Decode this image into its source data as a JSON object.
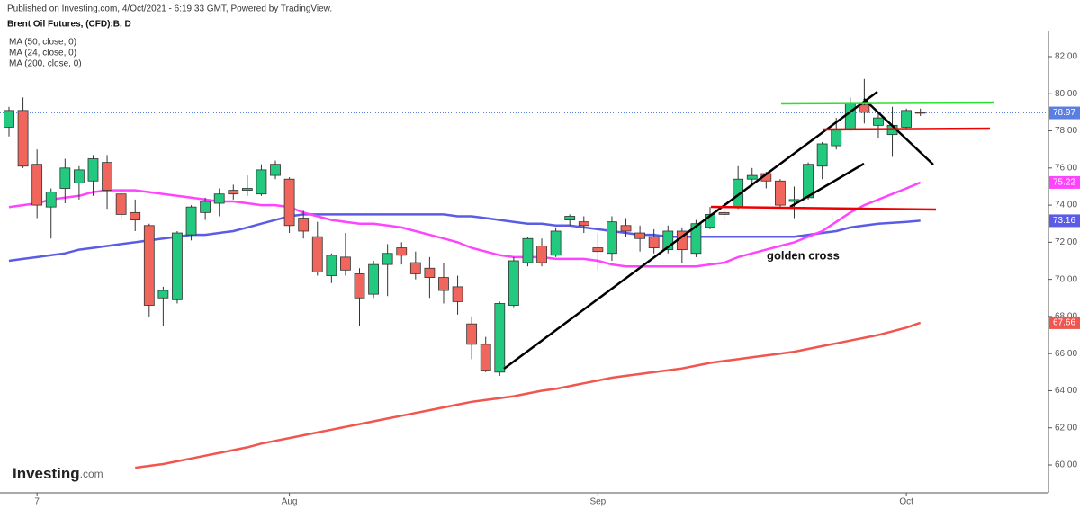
{
  "chart_data": {
    "type": "candlestick",
    "published": "Published on Investing.com, 4/Oct/2021 - 6:19:33 GMT, Powered by TradingView.",
    "title": "Brent Oil Futures, (CFD):B, D",
    "logo": {
      "name": "Investing",
      "suffix": ".com"
    },
    "annotation": "golden cross",
    "categories": [
      null,
      null,
      "7",
      null,
      null,
      null,
      null,
      null,
      null,
      null,
      null,
      null,
      null,
      null,
      null,
      null,
      null,
      null,
      null,
      null,
      "Aug",
      null,
      null,
      null,
      null,
      null,
      null,
      null,
      null,
      null,
      null,
      null,
      null,
      null,
      null,
      null,
      null,
      null,
      null,
      null,
      null,
      null,
      "Sep",
      null,
      null,
      null,
      null,
      null,
      null,
      null,
      null,
      null,
      null,
      null,
      null,
      null,
      null,
      null,
      null,
      null,
      null,
      null,
      null,
      null,
      "Oct",
      null
    ],
    "open": [
      78.2,
      79.1,
      76.2,
      73.9,
      74.9,
      75.2,
      75.3,
      76.3,
      74.6,
      73.6,
      72.9,
      69.0,
      68.9,
      72.4,
      73.6,
      74.1,
      74.8,
      74.8,
      74.6,
      75.6,
      75.4,
      73.3,
      72.3,
      70.2,
      71.2,
      70.3,
      69.2,
      70.8,
      71.7,
      70.9,
      70.6,
      70.1,
      69.6,
      67.6,
      66.5,
      65.0,
      68.6,
      70.9,
      71.8,
      71.3,
      73.2,
      73.1,
      71.7,
      71.4,
      72.9,
      72.5,
      72.3,
      71.6,
      72.6,
      71.4,
      72.8,
      73.6,
      73.9,
      75.4,
      75.7,
      75.3,
      74.2,
      74.4,
      76.1,
      77.2,
      78.1,
      79.4,
      78.3,
      77.8,
      78.2,
      79.0
    ],
    "high": [
      79.3,
      79.8,
      77.0,
      74.9,
      76.5,
      76.1,
      76.7,
      76.7,
      74.8,
      74.3,
      73.0,
      69.6,
      72.6,
      74.0,
      74.4,
      74.9,
      75.1,
      75.6,
      76.2,
      76.4,
      75.5,
      73.7,
      73.1,
      71.4,
      72.5,
      70.6,
      71.0,
      71.9,
      72.0,
      71.5,
      71.2,
      70.9,
      70.2,
      68.0,
      66.9,
      68.8,
      71.2,
      72.3,
      72.2,
      72.8,
      73.5,
      73.4,
      72.5,
      73.4,
      73.3,
      72.9,
      72.7,
      72.9,
      72.8,
      73.2,
      73.9,
      74.1,
      76.1,
      76.0,
      75.8,
      75.4,
      75.0,
      76.3,
      77.4,
      78.7,
      79.8,
      80.8,
      79.0,
      79.3,
      79.2,
      79.2
    ],
    "low": [
      77.7,
      76.0,
      73.3,
      72.2,
      74.1,
      74.3,
      74.5,
      73.8,
      73.3,
      72.6,
      68.0,
      67.5,
      68.7,
      72.1,
      73.2,
      73.4,
      74.3,
      74.5,
      74.5,
      75.4,
      72.5,
      72.2,
      70.2,
      69.8,
      70.2,
      67.5,
      69.0,
      69.1,
      70.8,
      70.0,
      69.0,
      68.7,
      68.1,
      65.7,
      65.0,
      64.8,
      68.5,
      70.7,
      70.7,
      71.2,
      72.9,
      72.5,
      70.5,
      71.0,
      72.3,
      71.5,
      71.4,
      71.4,
      70.9,
      71.2,
      72.7,
      73.2,
      73.8,
      75.0,
      74.9,
      73.9,
      73.3,
      74.3,
      75.4,
      77.0,
      78.0,
      78.4,
      77.6,
      76.6,
      78.1,
      78.8
    ],
    "close": [
      79.1,
      76.1,
      74.0,
      74.7,
      76.0,
      75.9,
      76.5,
      74.8,
      73.5,
      73.2,
      68.6,
      69.4,
      72.5,
      73.9,
      74.2,
      74.6,
      74.6,
      74.9,
      75.9,
      76.2,
      72.9,
      72.6,
      70.4,
      71.3,
      70.5,
      69.0,
      70.8,
      71.4,
      71.3,
      70.3,
      70.1,
      69.4,
      68.8,
      66.5,
      65.1,
      68.7,
      71.0,
      72.2,
      70.9,
      72.6,
      73.4,
      72.9,
      71.5,
      73.1,
      72.6,
      72.2,
      71.7,
      72.6,
      71.6,
      73.0,
      73.5,
      73.5,
      75.4,
      75.6,
      75.3,
      74.0,
      74.3,
      76.2,
      77.3,
      78.1,
      79.5,
      79.0,
      78.7,
      78.3,
      79.1,
      78.97
    ],
    "up_color": "#22c97f",
    "down_color": "#f0665c",
    "series": [
      {
        "name": "MA (50, close, 0)",
        "color": "#5b5ce6",
        "values": [
          71.0,
          71.1,
          71.2,
          71.3,
          71.4,
          71.6,
          71.7,
          71.8,
          71.9,
          72.0,
          72.1,
          72.2,
          72.3,
          72.4,
          72.4,
          72.5,
          72.6,
          72.8,
          73.0,
          73.2,
          73.4,
          73.5,
          73.5,
          73.5,
          73.5,
          73.5,
          73.5,
          73.5,
          73.5,
          73.5,
          73.5,
          73.5,
          73.4,
          73.4,
          73.3,
          73.2,
          73.1,
          73.0,
          73.0,
          72.9,
          72.9,
          72.8,
          72.7,
          72.6,
          72.5,
          72.4,
          72.4,
          72.3,
          72.3,
          72.3,
          72.3,
          72.3,
          72.3,
          72.3,
          72.3,
          72.3,
          72.3,
          72.4,
          72.5,
          72.6,
          72.8,
          72.9,
          73.0,
          73.05,
          73.1,
          73.16
        ]
      },
      {
        "name": "MA (24, close, 0)",
        "color": "#ff44ff",
        "values": [
          73.9,
          74.0,
          74.1,
          74.3,
          74.4,
          74.5,
          74.7,
          74.8,
          74.8,
          74.8,
          74.7,
          74.6,
          74.5,
          74.4,
          74.3,
          74.2,
          74.2,
          74.1,
          74.0,
          74.0,
          73.9,
          73.6,
          73.4,
          73.2,
          73.1,
          73.0,
          73.0,
          72.9,
          72.8,
          72.6,
          72.4,
          72.2,
          72.0,
          71.7,
          71.5,
          71.3,
          71.2,
          71.2,
          71.2,
          71.1,
          71.1,
          71.1,
          71.0,
          70.8,
          70.7,
          70.7,
          70.7,
          70.7,
          70.7,
          70.7,
          70.8,
          70.9,
          71.2,
          71.4,
          71.6,
          71.8,
          72.0,
          72.3,
          72.6,
          73.1,
          73.6,
          74.0,
          74.3,
          74.6,
          74.9,
          75.22
        ]
      },
      {
        "name": "MA (200, close, 0)",
        "color": "#f0564f",
        "values": [
          null,
          null,
          null,
          null,
          null,
          null,
          null,
          null,
          null,
          59.85,
          59.95,
          60.05,
          60.2,
          60.35,
          60.5,
          60.65,
          60.8,
          60.95,
          61.15,
          61.3,
          61.45,
          61.6,
          61.75,
          61.9,
          62.05,
          62.2,
          62.35,
          62.5,
          62.65,
          62.8,
          62.95,
          63.1,
          63.25,
          63.4,
          63.5,
          63.6,
          63.7,
          63.85,
          64.0,
          64.1,
          64.25,
          64.4,
          64.55,
          64.7,
          64.8,
          64.9,
          65.0,
          65.1,
          65.2,
          65.35,
          65.5,
          65.6,
          65.7,
          65.8,
          65.9,
          66.0,
          66.1,
          66.25,
          66.4,
          66.55,
          66.7,
          66.85,
          67.0,
          67.2,
          67.4,
          67.66
        ]
      }
    ],
    "last_price_color": "#5b7fe0",
    "ylim": [
      59,
      83
    ],
    "yticks": [
      {
        "value": 60,
        "label": "60.00"
      },
      {
        "value": 62,
        "label": "62.00"
      },
      {
        "value": 64,
        "label": "64.00"
      },
      {
        "value": 66,
        "label": "66.00"
      },
      {
        "value": 68,
        "label": "68.00"
      },
      {
        "value": 70,
        "label": "70.00"
      },
      {
        "value": 72,
        "label": "72.00"
      },
      {
        "value": 74,
        "label": "74.00"
      },
      {
        "value": 76,
        "label": "76.00"
      },
      {
        "value": 78,
        "label": "78.00"
      },
      {
        "value": 80,
        "label": "80.00"
      },
      {
        "value": 82,
        "label": "82.00"
      }
    ]
  }
}
